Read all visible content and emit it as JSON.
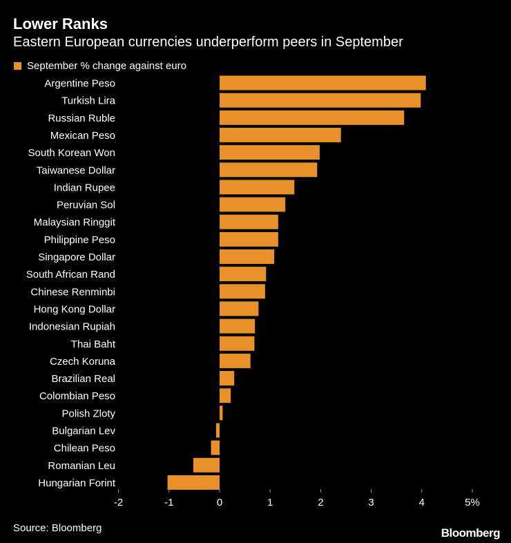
{
  "header": {
    "title": "Lower Ranks",
    "subtitle": "Eastern European currencies underperform peers in September"
  },
  "legend": {
    "label": "September % change against euro",
    "color": "#E8912A"
  },
  "footer": {
    "source": "Source: Bloomberg",
    "brand": "Bloomberg"
  },
  "colors": {
    "background": "#000000",
    "bar": "#E8912A",
    "text": "#FFFFFF",
    "axis": "#999999"
  },
  "chart_data": {
    "type": "bar",
    "orientation": "horizontal",
    "title": "Lower Ranks",
    "subtitle": "Eastern European currencies underperform peers in September",
    "xlabel": "",
    "ylabel": "",
    "xlim": [
      -2,
      5
    ],
    "xticks": [
      -2,
      -1,
      0,
      1,
      2,
      3,
      4,
      5
    ],
    "xtick_labels": [
      "-2",
      "-1",
      "0",
      "1",
      "2",
      "3",
      "4",
      "5%"
    ],
    "grid": false,
    "legend_position": "top-left",
    "series": [
      {
        "name": "September % change against euro",
        "values": [
          4.08,
          3.98,
          3.65,
          2.4,
          1.98,
          1.93,
          1.48,
          1.3,
          1.16,
          1.16,
          1.08,
          0.92,
          0.9,
          0.77,
          0.7,
          0.69,
          0.61,
          0.29,
          0.22,
          0.06,
          -0.07,
          -0.17,
          -0.52,
          -1.03
        ]
      }
    ],
    "categories": [
      "Argentine Peso",
      "Turkish Lira",
      "Russian Ruble",
      "Mexican Peso",
      "South Korean Won",
      "Taiwanese Dollar",
      "Indian Rupee",
      "Peruvian Sol",
      "Malaysian Ringgit",
      "Philippine Peso",
      "Singapore Dollar",
      "South African Rand",
      "Chinese Renminbi",
      "Hong Kong Dollar",
      "Indonesian Rupiah",
      "Thai Baht",
      "Czech Koruna",
      "Brazilian Real",
      "Colombian Peso",
      "Polish Zloty",
      "Bulgarian Lev",
      "Chilean Peso",
      "Romanian Leu",
      "Hungarian Forint"
    ]
  }
}
